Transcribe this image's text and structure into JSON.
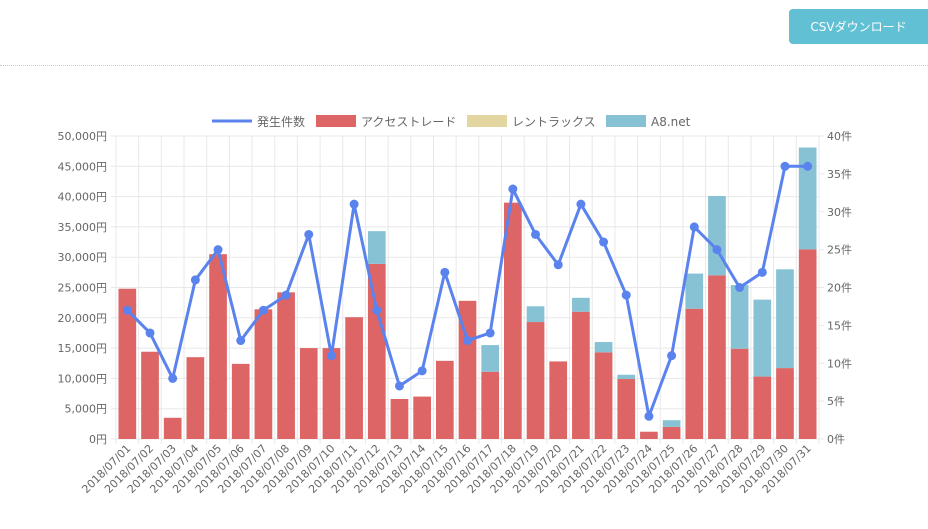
{
  "toolbar": {
    "csv_download_label": "CSVダウンロード"
  },
  "colors": {
    "button": "#62c0d5",
    "line": "#5b83ee",
    "bar_access_trade": "#de6565",
    "bar_rent_rax": "#e3d5a0",
    "bar_a8": "#86c2d4",
    "grid": "#e8e8e8"
  },
  "chart_data": {
    "type": "bar",
    "title": "",
    "legend_position": "top-center",
    "grid": true,
    "categories": [
      "2018/07/01",
      "2018/07/02",
      "2018/07/03",
      "2018/07/04",
      "2018/07/05",
      "2018/07/06",
      "2018/07/07",
      "2018/07/08",
      "2018/07/09",
      "2018/07/10",
      "2018/07/11",
      "2018/07/12",
      "2018/07/13",
      "2018/07/14",
      "2018/07/15",
      "2018/07/16",
      "2018/07/17",
      "2018/07/18",
      "2018/07/19",
      "2018/07/20",
      "2018/07/21",
      "2018/07/22",
      "2018/07/23",
      "2018/07/24",
      "2018/07/25",
      "2018/07/26",
      "2018/07/27",
      "2018/07/28",
      "2018/07/29",
      "2018/07/30",
      "2018/07/31"
    ],
    "y_left": {
      "ylim": [
        0,
        50000
      ],
      "ticks": [
        "0円",
        "5,000円",
        "10,000円",
        "15,000円",
        "20,000円",
        "25,000円",
        "30,000円",
        "35,000円",
        "40,000円",
        "45,000円",
        "50,000円"
      ]
    },
    "y_right": {
      "ylim": [
        0,
        40
      ],
      "ticks": [
        "0件",
        "5件",
        "10件",
        "15件",
        "20件",
        "25件",
        "30件",
        "35件",
        "40件"
      ]
    },
    "series": [
      {
        "name": "発生件数",
        "kind": "line",
        "axis": "right",
        "color": "#5b83ee",
        "values": [
          17,
          14,
          8,
          21,
          25,
          13,
          17,
          19,
          27,
          11,
          31,
          17,
          7,
          9,
          22,
          13,
          14,
          33,
          27,
          23,
          31,
          26,
          19,
          3,
          11,
          28,
          25,
          20,
          22,
          36,
          36
        ]
      },
      {
        "name": "アクセストレード",
        "kind": "bar",
        "axis": "left",
        "color": "#de6565",
        "values": [
          24800,
          14400,
          3500,
          13500,
          30500,
          12400,
          21400,
          24200,
          15000,
          15000,
          20100,
          28900,
          6600,
          7000,
          12900,
          22800,
          11100,
          39000,
          19300,
          12800,
          21000,
          14300,
          9900,
          1200,
          2000,
          21500,
          27000,
          14900,
          10300,
          11700,
          31300
        ]
      },
      {
        "name": "レントラックス",
        "kind": "bar",
        "axis": "left",
        "color": "#e3d5a0",
        "values": [
          0,
          0,
          0,
          0,
          0,
          0,
          0,
          0,
          0,
          0,
          0,
          0,
          0,
          0,
          0,
          0,
          0,
          0,
          0,
          0,
          0,
          0,
          0,
          0,
          0,
          0,
          0,
          0,
          0,
          0,
          0
        ]
      },
      {
        "name": "A8.net",
        "kind": "bar",
        "axis": "left",
        "color": "#86c2d4",
        "values": [
          0,
          0,
          0,
          0,
          0,
          0,
          0,
          0,
          0,
          0,
          0,
          5400,
          0,
          0,
          0,
          0,
          4400,
          0,
          2600,
          0,
          2300,
          1700,
          700,
          0,
          1100,
          5800,
          13100,
          10500,
          12700,
          16300,
          16800
        ]
      }
    ]
  }
}
